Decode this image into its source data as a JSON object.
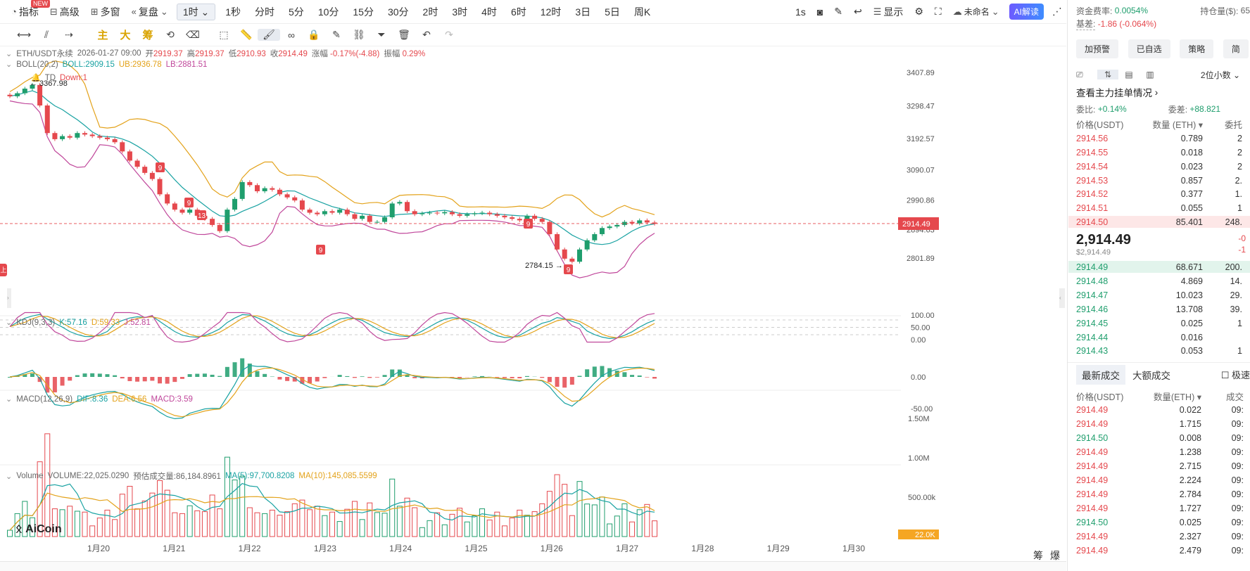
{
  "toolbar": {
    "indicators": "指标",
    "new_badge": "NEW",
    "advanced": "高级",
    "multi": "多窗",
    "replay": "复盘",
    "timeframes": [
      "1时",
      "1秒",
      "分时",
      "5分",
      "10分",
      "15分",
      "30分",
      "2时",
      "3时",
      "4时",
      "6时",
      "12时",
      "3日",
      "5日",
      "周K"
    ],
    "selected_timeframe": "1时",
    "interval_1s": "1s",
    "display": "显示",
    "unnamed": "未命名",
    "ai": "AI解读"
  },
  "drawbar": {
    "main": "主",
    "big": "大",
    "chips": "筹"
  },
  "legend": {
    "symbol": "ETH/USDT永续",
    "datetime": "2026-01-27 09:00",
    "open_label": "开",
    "open": "2919.37",
    "high_label": "高",
    "high": "2919.37",
    "low_label": "低",
    "low": "2910.93",
    "close_label": "收",
    "close": "2914.49",
    "change_label": "涨幅",
    "change": "-0.17%(-4.88)",
    "amp_label": "振幅",
    "amp": "0.29%",
    "boll_name": "BOLL(20,2)",
    "boll": "BOLL:2909.15",
    "ub": "UB:2936.78",
    "lb": "LB:2881.51",
    "td_name": "TD",
    "td": "Down:1",
    "kdj_name": "KDJ(9,3,3)",
    "k": "K:57.16",
    "d": "D:59.33",
    "j": "J:52.81",
    "macd_name": "MACD(12,26,9)",
    "dif": "DIF:8.36",
    "dea": "DEA:6.56",
    "macd": "MACD:3.59",
    "vol_name": "Volume",
    "volume": "VOLUME:22,025.0290",
    "est": "预估成交量:86,184.8961",
    "ma5": "MA(5):97,700.8208",
    "ma10": "MA(10):145,085.5599"
  },
  "chart_labels": {
    "high_mark": "3367.98",
    "low_mark": "2784.15",
    "current_price": "2914.49",
    "td_marks": [
      "9",
      "9",
      "13",
      "9",
      "9",
      "9"
    ],
    "logo": "AiCoin",
    "vol_current": "22.0K",
    "corner": [
      "筹",
      "爆"
    ],
    "left_tag": "上"
  },
  "colors": {
    "up": "#1f9e6d",
    "down": "#e5484d",
    "boll_mid": "#19a2a2",
    "boll_up": "#e3a21a",
    "boll_low": "#c0479b"
  },
  "chart_data": {
    "type": "candlestick",
    "price_axis": [
      "3407.89",
      "3298.47",
      "3192.57",
      "3090.07",
      "2990.86",
      "2894.63",
      "2801.89"
    ],
    "kdj_axis": [
      "100.00",
      "50.00",
      "0.00"
    ],
    "macd_axis": [
      "0.00",
      "-50.00"
    ],
    "vol_axis": [
      "1.50M",
      "1.00M",
      "500.00k"
    ],
    "x_labels": [
      "1月20",
      "1月21",
      "1月22",
      "1月23",
      "1月24",
      "1月25",
      "1月26",
      "1月27",
      "1月28",
      "1月29",
      "1月30"
    ],
    "price_closes": [
      3330,
      3340,
      3355,
      3367,
      3300,
      3210,
      3190,
      3200,
      3195,
      3210,
      3205,
      3200,
      3195,
      3190,
      3180,
      3150,
      3120,
      3100,
      3080,
      3060,
      3010,
      2980,
      2960,
      2950,
      2960,
      2940,
      2930,
      2910,
      2890,
      2960,
      2995,
      3050,
      3040,
      3020,
      3030,
      3025,
      3010,
      3000,
      2990,
      2960,
      2950,
      2945,
      2955,
      2950,
      2960,
      2945,
      2930,
      2940,
      2920,
      2920,
      2935,
      2980,
      2985,
      2955,
      2945,
      2948,
      2950,
      2948,
      2952,
      2945,
      2940,
      2945,
      2948,
      2950,
      2945,
      2940,
      2935,
      2930,
      2925,
      2940,
      2930,
      2920,
      2880,
      2830,
      2800,
      2790,
      2830,
      2860,
      2880,
      2900,
      2905,
      2910,
      2920,
      2915,
      2925,
      2918,
      2914
    ]
  },
  "right": {
    "funding_label": "资金费率:",
    "funding": "0.0054%",
    "basis_label": "基差:",
    "basis": "-1.86 (-0.064%)",
    "position_label": "持仓量($):",
    "position": "65",
    "buttons": [
      "加预警",
      "已自选",
      "策略",
      "简"
    ],
    "decimals": "2位小数",
    "orders_link": "查看主力挂单情况",
    "ratio_label": "委比:",
    "ratio": "+0.14%",
    "diff_label": "委差:",
    "diff": "+88.821",
    "ob_headers": [
      "价格(USDT)",
      "数量 (ETH)",
      "委托"
    ],
    "asks": [
      {
        "p": "2914.56",
        "q": "0.789",
        "t": "2"
      },
      {
        "p": "2914.55",
        "q": "0.018",
        "t": "2"
      },
      {
        "p": "2914.54",
        "q": "0.023",
        "t": "2"
      },
      {
        "p": "2914.53",
        "q": "0.857",
        "t": "2."
      },
      {
        "p": "2914.52",
        "q": "0.377",
        "t": "1."
      },
      {
        "p": "2914.51",
        "q": "0.055",
        "t": "1"
      },
      {
        "p": "2914.50",
        "q": "85.401",
        "t": "248."
      }
    ],
    "last_price": "2,914.49",
    "last_usd": "$2,914.49",
    "last_chg1": "-0",
    "last_chg2": "-1",
    "bids": [
      {
        "p": "2914.49",
        "q": "68.671",
        "t": "200."
      },
      {
        "p": "2914.48",
        "q": "4.869",
        "t": "14."
      },
      {
        "p": "2914.47",
        "q": "10.023",
        "t": "29."
      },
      {
        "p": "2914.46",
        "q": "13.708",
        "t": "39."
      },
      {
        "p": "2914.45",
        "q": "0.025",
        "t": "1"
      },
      {
        "p": "2914.44",
        "q": "0.016",
        "t": ""
      },
      {
        "p": "2914.43",
        "q": "0.053",
        "t": "1"
      }
    ],
    "tabs": [
      "最新成交",
      "大额成交"
    ],
    "fast_label": "极速",
    "tr_headers": [
      "价格(USDT)",
      "数量(ETH)",
      "成交"
    ],
    "trades": [
      {
        "p": "2914.49",
        "q": "0.022",
        "t": "09:",
        "side": "down"
      },
      {
        "p": "2914.49",
        "q": "1.715",
        "t": "09:",
        "side": "down"
      },
      {
        "p": "2914.50",
        "q": "0.008",
        "t": "09:",
        "side": "up"
      },
      {
        "p": "2914.49",
        "q": "1.238",
        "t": "09:",
        "side": "down"
      },
      {
        "p": "2914.49",
        "q": "2.715",
        "t": "09:",
        "side": "down"
      },
      {
        "p": "2914.49",
        "q": "2.224",
        "t": "09:",
        "side": "down"
      },
      {
        "p": "2914.49",
        "q": "2.784",
        "t": "09:",
        "side": "down"
      },
      {
        "p": "2914.49",
        "q": "1.727",
        "t": "09:",
        "side": "down"
      },
      {
        "p": "2914.50",
        "q": "0.025",
        "t": "09:",
        "side": "up"
      },
      {
        "p": "2914.49",
        "q": "2.327",
        "t": "09:",
        "side": "down"
      },
      {
        "p": "2914.49",
        "q": "2.479",
        "t": "09:",
        "side": "down"
      }
    ]
  }
}
